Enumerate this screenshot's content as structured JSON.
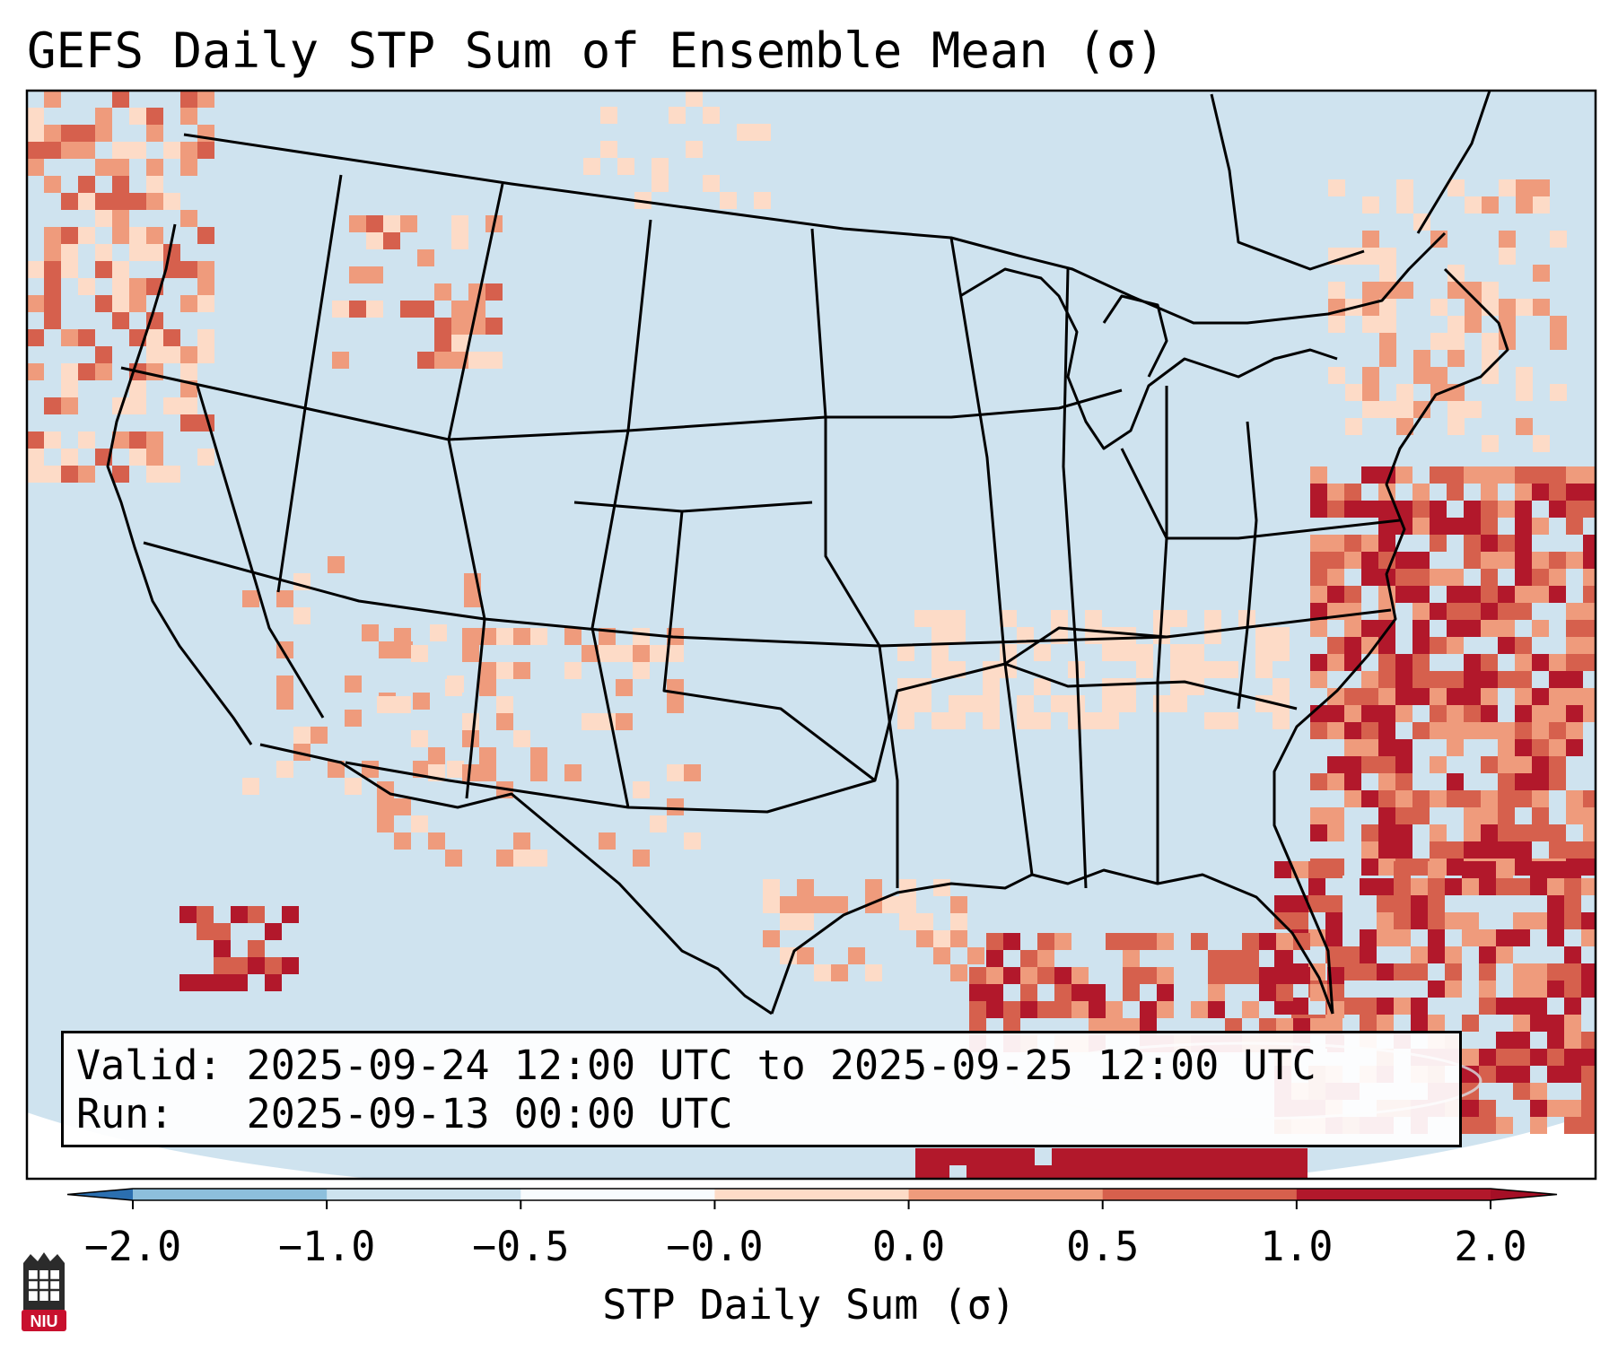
{
  "title": "GEFS Daily STP Sum of Ensemble Mean (σ)",
  "info": {
    "valid_line": "Valid: 2025-09-24 12:00 UTC to 2025-09-25 12:00 UTC",
    "run_line": "Run:   2025-09-13 00:00 UTC"
  },
  "colorbar": {
    "label": "STP Daily Sum (σ)",
    "ticks": [
      "−2.0",
      "−1.0",
      "−0.5",
      "−0.0",
      "0.0",
      "0.5",
      "1.0",
      "2.0"
    ],
    "colors": [
      "#3a83c0",
      "#8dbfdc",
      "#cde3ef",
      "#f8fbfd",
      "#fddbc7",
      "#ef9b7c",
      "#d6604d",
      "#b2182b"
    ],
    "extend_low_color": "#2b6fb0",
    "extend_high_color": "#a50f26"
  },
  "map": {
    "ocean_color": "#cfe3ef",
    "background_color": "#ffffff",
    "border_color": "#000000"
  },
  "logo": {
    "text": "NIU",
    "color": "#c8102e"
  }
}
